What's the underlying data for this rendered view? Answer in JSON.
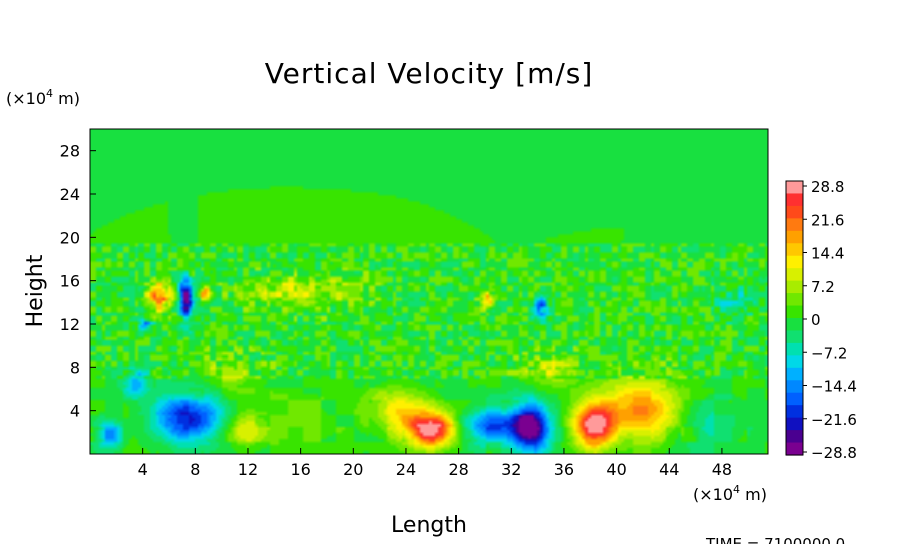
{
  "chart_data": {
    "type": "heatmap",
    "title": "Vertical Velocity [m/s]",
    "xlabel": "Length",
    "ylabel": "Height",
    "x_unit_prefix": "(×10",
    "x_unit_exp": "4",
    "x_unit_suffix": " m)",
    "y_unit_prefix": "(×10",
    "y_unit_exp": "4",
    "y_unit_suffix": " m)",
    "xlim": [
      0,
      51.5
    ],
    "ylim": [
      0,
      30
    ],
    "x_ticks": [
      4,
      8,
      12,
      16,
      20,
      24,
      28,
      32,
      36,
      40,
      44,
      48
    ],
    "y_ticks": [
      4,
      8,
      12,
      16,
      20,
      24,
      28
    ],
    "colorbar": {
      "labels": [
        "28.8",
        "21.6",
        "14.4",
        "7.2",
        "0",
        "−7.2",
        "−14.4",
        "−21.6",
        "−28.8"
      ],
      "levels": [
        28.8,
        21.6,
        14.4,
        7.2,
        0,
        -7.2,
        -14.4,
        -21.6,
        -28.8
      ],
      "colors": [
        "#ff9a9a",
        "#ff3030",
        "#ff4a1a",
        "#ff7a10",
        "#ffa000",
        "#ffc800",
        "#fff000",
        "#d8f000",
        "#a8ec00",
        "#70e800",
        "#38e400",
        "#18e040",
        "#10e070",
        "#00e0b0",
        "#00d8e8",
        "#00b0ff",
        "#0088ff",
        "#0060ff",
        "#0030e0",
        "#1010c0",
        "#4a0090",
        "#7a0090"
      ]
    },
    "background_value": 0,
    "features": [
      {
        "x": 1.5,
        "y": 1.8,
        "v": -14,
        "sx": 0.9,
        "sy": 1.2
      },
      {
        "x": 3.5,
        "y": 6.5,
        "v": -12,
        "sx": 1.0,
        "sy": 1.2
      },
      {
        "x": 7.5,
        "y": 3.2,
        "v": -22,
        "sx": 2.6,
        "sy": 2.2
      },
      {
        "x": 11.8,
        "y": 2.2,
        "v": 9,
        "sx": 1.6,
        "sy": 1.6
      },
      {
        "x": 26.0,
        "y": 2.2,
        "v": 30,
        "sx": 1.8,
        "sy": 1.5
      },
      {
        "x": 23.5,
        "y": 4.0,
        "v": 12,
        "sx": 2.2,
        "sy": 2.0
      },
      {
        "x": 30.5,
        "y": 2.6,
        "v": -18,
        "sx": 2.2,
        "sy": 1.6
      },
      {
        "x": 33.5,
        "y": 2.5,
        "v": -30,
        "sx": 1.4,
        "sy": 2.2
      },
      {
        "x": 38.2,
        "y": 2.6,
        "v": 27,
        "sx": 1.5,
        "sy": 2.0
      },
      {
        "x": 42.0,
        "y": 4.0,
        "v": 18,
        "sx": 3.4,
        "sy": 2.8
      },
      {
        "x": 46.5,
        "y": 3.0,
        "v": -6,
        "sx": 3.0,
        "sy": 2.5
      },
      {
        "x": 5.3,
        "y": 14.6,
        "v": 20,
        "sx": 0.9,
        "sy": 1.3
      },
      {
        "x": 7.3,
        "y": 14.4,
        "v": -32,
        "sx": 0.5,
        "sy": 1.6
      },
      {
        "x": 8.8,
        "y": 14.8,
        "v": 22,
        "sx": 0.4,
        "sy": 0.6
      },
      {
        "x": 4.2,
        "y": 12.0,
        "v": -14,
        "sx": 0.5,
        "sy": 0.6
      },
      {
        "x": 30.3,
        "y": 14.2,
        "v": 18,
        "sx": 0.5,
        "sy": 0.7
      },
      {
        "x": 34.3,
        "y": 13.6,
        "v": -16,
        "sx": 0.5,
        "sy": 1.0
      },
      {
        "x": 15.0,
        "y": 15.0,
        "v": 8,
        "sx": 3.0,
        "sy": 1.6
      },
      {
        "x": 19.5,
        "y": 15.2,
        "v": 5,
        "sx": 2.0,
        "sy": 1.5
      },
      {
        "x": 10.5,
        "y": 7.5,
        "v": 5,
        "sx": 2.5,
        "sy": 2.0
      },
      {
        "x": 35.0,
        "y": 7.8,
        "v": 8,
        "sx": 2.0,
        "sy": 1.5
      },
      {
        "x": 16.0,
        "y": 3.0,
        "v": 3,
        "sx": 3.5,
        "sy": 2.5
      },
      {
        "x": 49.0,
        "y": 14.5,
        "v": -5,
        "sx": 2.0,
        "sy": 1.5
      }
    ]
  },
  "footer_text": "TIME = 7100000.0"
}
